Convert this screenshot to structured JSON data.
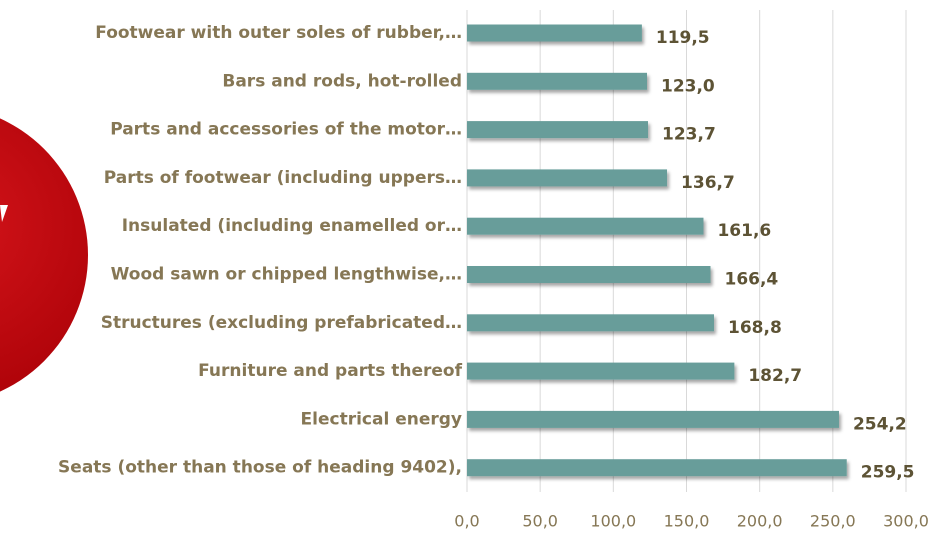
{
  "chart_data": {
    "type": "hbar",
    "categories": [
      "Footwear with outer soles of rubber,…",
      "Bars and rods, hot-rolled",
      "Parts and accessories of the motor…",
      "Parts of footwear (including uppers…",
      "Insulated (including enamelled or…",
      "Wood sawn or chipped lengthwise,…",
      "Structures (excluding prefabricated…",
      "Furniture and parts thereof",
      "Electrical energy",
      "Seats (other than those of heading 9402),"
    ],
    "values": [
      119.5,
      123.0,
      123.7,
      136.7,
      161.6,
      166.4,
      168.8,
      182.7,
      254.2,
      259.5
    ],
    "value_labels": [
      "119,5",
      "123,0",
      "123,7",
      "136,7",
      "161,6",
      "166,4",
      "168,8",
      "182,7",
      "254,2",
      "259,5"
    ],
    "color": "#679d9a",
    "xlim": [
      0,
      300
    ],
    "xticks": [
      {
        "value": 0,
        "label": "0,0"
      },
      {
        "value": 50,
        "label": "50,0"
      },
      {
        "value": 100,
        "label": "100,0"
      },
      {
        "value": 150,
        "label": "150,0"
      },
      {
        "value": 200,
        "label": "200,0"
      },
      {
        "value": 250,
        "label": "250,0"
      },
      {
        "value": 300,
        "label": "300,0"
      }
    ],
    "grid": true
  }
}
